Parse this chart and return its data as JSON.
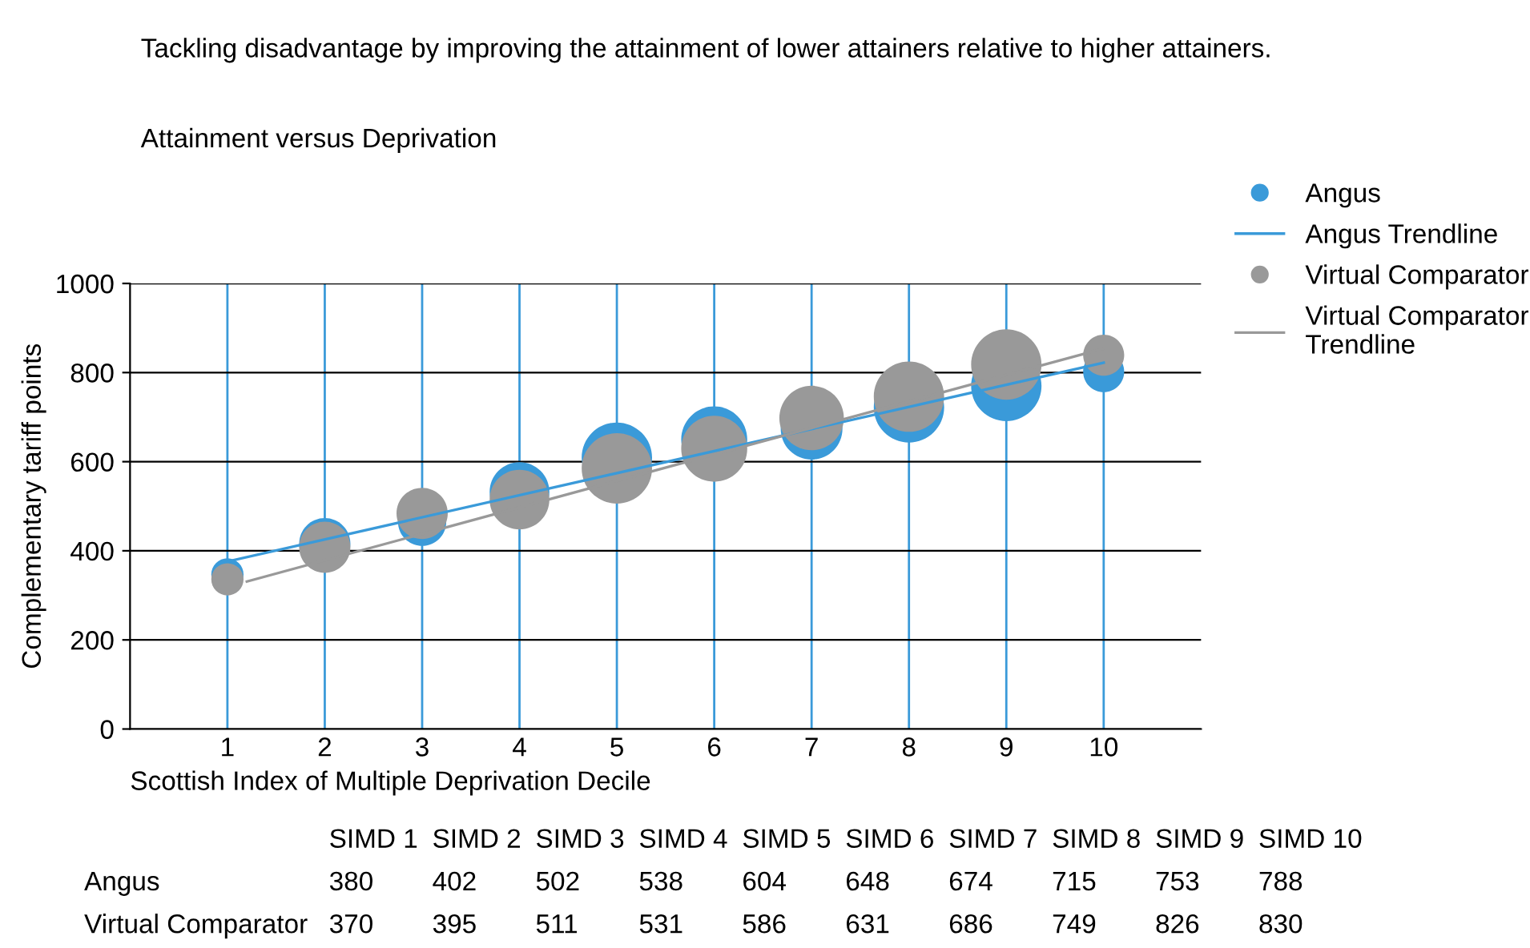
{
  "chart_data": {
    "type": "bubble",
    "title": "Tackling disadvantage by improving the attainment of lower attainers relative to higher attainers.",
    "subtitle": "Attainment versus Deprivation",
    "xlabel": "Scottish Index of Multiple Deprivation Decile",
    "ylabel": "Complementary tariff points",
    "x": [
      1,
      2,
      3,
      4,
      5,
      6,
      7,
      8,
      9,
      10
    ],
    "series": [
      {
        "name": "Angus",
        "color": "#3a9ad9",
        "values": [
          347,
          416,
          465,
          532,
          609,
          650,
          674,
          722,
          770,
          802
        ],
        "sizes": [
          0.21,
          0.53,
          0.47,
          0.72,
          1,
          0.88,
          0.77,
          1,
          1,
          0.34
        ]
      },
      {
        "name": "Angus Trendline",
        "color": "#3a9ad9",
        "type": "line",
        "x": [
          1,
          10
        ],
        "values": [
          376,
          822
        ]
      },
      {
        "name": "Virtual Comparator",
        "color": "#999999",
        "values": [
          336,
          408,
          484,
          515,
          585,
          629,
          698,
          746,
          818,
          839
        ],
        "sizes": [
          0.21,
          0.53,
          0.53,
          0.72,
          1,
          0.88,
          0.84,
          1,
          1,
          0.34
        ]
      },
      {
        "name": "Virtual Comparator Trendline",
        "color": "#999999",
        "type": "line",
        "x": [
          1.2,
          10
        ],
        "values": [
          331,
          854
        ]
      }
    ],
    "xlim": [
      0,
      11
    ],
    "xticks": [
      1,
      2,
      3,
      4,
      5,
      6,
      7,
      8,
      9,
      10
    ],
    "ylim": [
      0,
      1000
    ],
    "yticks": [
      0,
      200,
      400,
      600,
      800,
      1000
    ],
    "grid": true,
    "legend": "top right",
    "annotations": [
      "SIMD 1",
      "SIMD 2",
      "SIMD 3",
      "SIMD 4",
      "SIMD 5",
      "SIMD 6",
      "SIMD 7",
      "SIMD 8",
      "SIMD 9",
      "SIMD 10",
      "Angus",
      "380",
      "402",
      "502",
      "538",
      "604",
      "648",
      "674",
      "715",
      "753",
      "788",
      "Virtual Comparator",
      "370",
      "395",
      "511",
      "531",
      "586",
      "631",
      "686",
      "749",
      "826",
      "830"
    ]
  }
}
